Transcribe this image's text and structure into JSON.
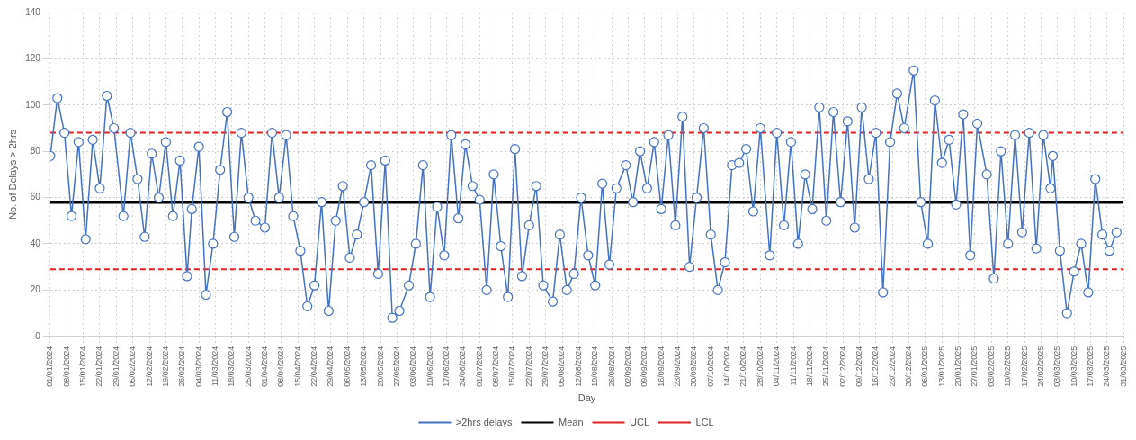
{
  "chart_data": {
    "type": "line",
    "xlabel": "Day",
    "ylabel": "No. of Delays > 2hrs",
    "xlim": [
      "2024-01-01",
      "2025-03-31"
    ],
    "ylim": [
      0,
      140
    ],
    "yticks": [
      0,
      20,
      40,
      60,
      80,
      100,
      120,
      140
    ],
    "grid": true,
    "legend": "bottom",
    "marker": "circle",
    "xticks": [
      {
        "value": "2024-01-01",
        "label": "01/01/2024"
      },
      {
        "value": "2024-01-08",
        "label": "08/01/2024"
      },
      {
        "value": "2024-01-15",
        "label": "15/01/2024"
      },
      {
        "value": "2024-01-22",
        "label": "22/01/2024"
      },
      {
        "value": "2024-01-29",
        "label": "29/01/2024"
      },
      {
        "value": "2024-02-05",
        "label": "05/02/2024"
      },
      {
        "value": "2024-02-12",
        "label": "12/02/2024"
      },
      {
        "value": "2024-02-19",
        "label": "19/02/2024"
      },
      {
        "value": "2024-02-26",
        "label": "26/02/2024"
      },
      {
        "value": "2024-03-04",
        "label": "04/03/2024"
      },
      {
        "value": "2024-03-11",
        "label": "11/03/2024"
      },
      {
        "value": "2024-03-18",
        "label": "18/03/2024"
      },
      {
        "value": "2024-03-25",
        "label": "25/03/2024"
      },
      {
        "value": "2024-04-01",
        "label": "01/04/2024"
      },
      {
        "value": "2024-04-08",
        "label": "08/04/2024"
      },
      {
        "value": "2024-04-15",
        "label": "15/04/2024"
      },
      {
        "value": "2024-04-22",
        "label": "22/04/2024"
      },
      {
        "value": "2024-04-29",
        "label": "29/04/2024"
      },
      {
        "value": "2024-05-06",
        "label": "06/05/2024"
      },
      {
        "value": "2024-05-13",
        "label": "13/05/2024"
      },
      {
        "value": "2024-05-20",
        "label": "20/05/2024"
      },
      {
        "value": "2024-05-27",
        "label": "27/05/2024"
      },
      {
        "value": "2024-06-03",
        "label": "03/06/2024"
      },
      {
        "value": "2024-06-10",
        "label": "10/06/2024"
      },
      {
        "value": "2024-06-17",
        "label": "17/06/2024"
      },
      {
        "value": "2024-06-24",
        "label": "24/06/2024"
      },
      {
        "value": "2024-07-01",
        "label": "01/07/2024"
      },
      {
        "value": "2024-07-08",
        "label": "08/07/2024"
      },
      {
        "value": "2024-07-15",
        "label": "15/07/2024"
      },
      {
        "value": "2024-07-22",
        "label": "22/07/2024"
      },
      {
        "value": "2024-07-29",
        "label": "29/07/2024"
      },
      {
        "value": "2024-08-05",
        "label": "05/08/2024"
      },
      {
        "value": "2024-08-12",
        "label": "12/08/2024"
      },
      {
        "value": "2024-08-19",
        "label": "19/08/2024"
      },
      {
        "value": "2024-08-26",
        "label": "26/08/2024"
      },
      {
        "value": "2024-09-02",
        "label": "02/09/2024"
      },
      {
        "value": "2024-09-09",
        "label": "09/09/2024"
      },
      {
        "value": "2024-09-16",
        "label": "16/09/2024"
      },
      {
        "value": "2024-09-23",
        "label": "23/09/2024"
      },
      {
        "value": "2024-09-30",
        "label": "30/09/2024"
      },
      {
        "value": "2024-10-07",
        "label": "07/10/2024"
      },
      {
        "value": "2024-10-14",
        "label": "14/10/2024"
      },
      {
        "value": "2024-10-21",
        "label": "21/10/2024"
      },
      {
        "value": "2024-10-28",
        "label": "28/10/2024"
      },
      {
        "value": "2024-11-04",
        "label": "04/11/2024"
      },
      {
        "value": "2024-11-11",
        "label": "11/11/2024"
      },
      {
        "value": "2024-11-18",
        "label": "18/11/2024"
      },
      {
        "value": "2024-11-25",
        "label": "25/11/2024"
      },
      {
        "value": "2024-12-02",
        "label": "02/12/2024"
      },
      {
        "value": "2024-12-09",
        "label": "09/12/2024"
      },
      {
        "value": "2024-12-16",
        "label": "16/12/2024"
      },
      {
        "value": "2024-12-23",
        "label": "23/12/2024"
      },
      {
        "value": "2024-12-30",
        "label": "30/12/2024"
      },
      {
        "value": "2025-01-06",
        "label": "06/01/2025"
      },
      {
        "value": "2025-01-13",
        "label": "13/01/2025"
      },
      {
        "value": "2025-01-20",
        "label": "20/01/2025"
      },
      {
        "value": "2025-01-27",
        "label": "27/01/2025"
      },
      {
        "value": "2025-02-03",
        "label": "03/02/2025"
      },
      {
        "value": "2025-02-10",
        "label": "10/02/2025"
      },
      {
        "value": "2025-02-17",
        "label": "17/02/2025"
      },
      {
        "value": "2025-02-24",
        "label": "24/02/2025"
      },
      {
        "value": "2025-03-03",
        "label": "03/03/2025"
      },
      {
        "value": "2025-03-10",
        "label": "10/03/2025"
      },
      {
        "value": "2025-03-17",
        "label": "17/03/2025"
      },
      {
        "value": "2025-03-24",
        "label": "24/03/2025"
      },
      {
        "value": "2025-03-31",
        "label": "31/03/2025"
      }
    ],
    "series": [
      {
        "name": ">2hrs delays",
        "color": "#4472c4",
        "x": [
          "2024-01-01",
          "2024-01-04",
          "2024-01-07",
          "2024-01-10",
          "2024-01-13",
          "2024-01-16",
          "2024-01-19",
          "2024-01-22",
          "2024-01-25",
          "2024-01-28",
          "2024-02-01",
          "2024-02-04",
          "2024-02-07",
          "2024-02-10",
          "2024-02-13",
          "2024-02-16",
          "2024-02-19",
          "2024-02-22",
          "2024-02-25",
          "2024-02-28",
          "2024-03-01",
          "2024-03-04",
          "2024-03-07",
          "2024-03-10",
          "2024-03-13",
          "2024-03-16",
          "2024-03-19",
          "2024-03-22",
          "2024-03-25",
          "2024-03-28",
          "2024-04-01",
          "2024-04-04",
          "2024-04-07",
          "2024-04-10",
          "2024-04-13",
          "2024-04-16",
          "2024-04-19",
          "2024-04-22",
          "2024-04-25",
          "2024-04-28",
          "2024-05-01",
          "2024-05-04",
          "2024-05-07",
          "2024-05-10",
          "2024-05-13",
          "2024-05-16",
          "2024-05-19",
          "2024-05-22",
          "2024-05-25",
          "2024-05-28",
          "2024-06-01",
          "2024-06-04",
          "2024-06-07",
          "2024-06-10",
          "2024-06-13",
          "2024-06-16",
          "2024-06-19",
          "2024-06-22",
          "2024-06-25",
          "2024-06-28",
          "2024-07-01",
          "2024-07-04",
          "2024-07-07",
          "2024-07-10",
          "2024-07-13",
          "2024-07-16",
          "2024-07-19",
          "2024-07-22",
          "2024-07-25",
          "2024-07-28",
          "2024-08-01",
          "2024-08-04",
          "2024-08-07",
          "2024-08-10",
          "2024-08-13",
          "2024-08-16",
          "2024-08-19",
          "2024-08-22",
          "2024-08-25",
          "2024-08-28",
          "2024-09-01",
          "2024-09-04",
          "2024-09-07",
          "2024-09-10",
          "2024-09-13",
          "2024-09-16",
          "2024-09-19",
          "2024-09-22",
          "2024-09-25",
          "2024-09-28",
          "2024-10-01",
          "2024-10-04",
          "2024-10-07",
          "2024-10-10",
          "2024-10-13",
          "2024-10-16",
          "2024-10-19",
          "2024-10-22",
          "2024-10-25",
          "2024-10-28",
          "2024-11-01",
          "2024-11-04",
          "2024-11-07",
          "2024-11-10",
          "2024-11-13",
          "2024-11-16",
          "2024-11-19",
          "2024-11-22",
          "2024-11-25",
          "2024-11-28",
          "2024-12-01",
          "2024-12-04",
          "2024-12-07",
          "2024-12-10",
          "2024-12-13",
          "2024-12-16",
          "2024-12-19",
          "2024-12-22",
          "2024-12-25",
          "2024-12-28",
          "2025-01-01",
          "2025-01-04",
          "2025-01-07",
          "2025-01-10",
          "2025-01-13",
          "2025-01-16",
          "2025-01-19",
          "2025-01-22",
          "2025-01-25",
          "2025-01-28",
          "2025-02-01",
          "2025-02-04",
          "2025-02-07",
          "2025-02-10",
          "2025-02-13",
          "2025-02-16",
          "2025-02-19",
          "2025-02-22",
          "2025-02-25",
          "2025-02-28",
          "2025-03-01",
          "2025-03-04",
          "2025-03-07",
          "2025-03-10",
          "2025-03-13",
          "2025-03-16",
          "2025-03-19",
          "2025-03-22",
          "2025-03-25",
          "2025-03-28"
        ],
        "values": [
          78,
          103,
          88,
          52,
          84,
          42,
          85,
          64,
          104,
          90,
          52,
          88,
          68,
          43,
          79,
          60,
          84,
          52,
          76,
          26,
          55,
          82,
          18,
          40,
          72,
          97,
          43,
          88,
          60,
          50,
          47,
          88,
          60,
          87,
          52,
          37,
          13,
          22,
          58,
          11,
          50,
          65,
          34,
          44,
          58,
          74,
          27,
          76,
          8,
          11,
          22,
          40,
          74,
          17,
          56,
          35,
          87,
          51,
          83,
          65,
          59,
          20,
          70,
          39,
          17,
          81,
          26,
          48,
          65,
          22,
          15,
          44,
          20,
          27,
          60,
          35,
          22,
          66,
          31,
          64,
          74,
          58,
          80,
          64,
          84,
          55,
          87,
          48,
          95,
          30,
          60,
          90,
          44,
          20,
          32,
          74,
          75,
          81,
          54,
          90,
          35,
          88,
          48,
          84,
          40,
          70,
          55,
          99,
          50,
          97,
          58,
          93,
          47,
          99,
          68,
          88,
          19,
          84,
          105,
          90,
          115,
          58,
          40,
          102,
          75,
          85,
          57,
          96,
          35,
          92,
          70,
          25,
          80,
          40,
          87,
          45,
          88,
          38,
          87,
          64,
          78,
          37,
          10,
          28,
          40,
          19,
          68,
          44,
          37,
          45
        ]
      },
      {
        "name": "Mean",
        "type": "line",
        "color": "#000000",
        "marker": "none",
        "x": [
          "2024-01-01",
          "2025-03-31"
        ],
        "values": [
          58,
          58
        ]
      },
      {
        "name": "UCL",
        "type": "line",
        "color": "#e02020",
        "marker": "none",
        "line_style": "dashed",
        "x": [
          "2024-01-01",
          "2025-03-31"
        ],
        "values": [
          88,
          88
        ]
      },
      {
        "name": "LCL",
        "type": "line",
        "color": "#e02020",
        "marker": "none",
        "line_style": "dashed",
        "x": [
          "2024-01-01",
          "2025-03-31"
        ],
        "values": [
          29,
          29
        ]
      }
    ]
  }
}
